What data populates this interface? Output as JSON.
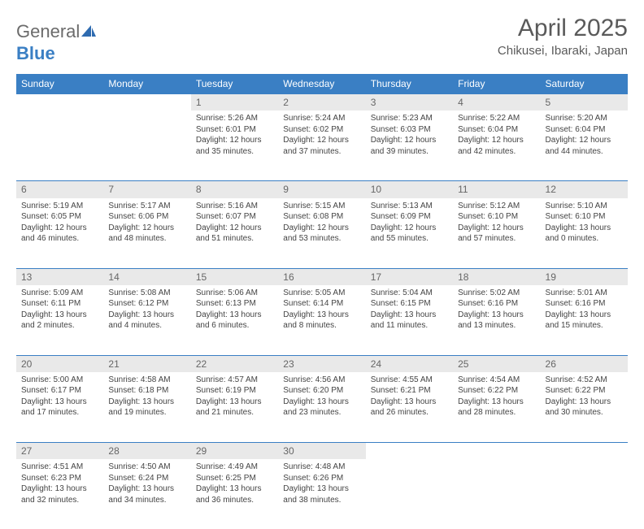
{
  "logo": {
    "text1": "General",
    "text2": "Blue"
  },
  "title": {
    "month": "April 2025",
    "location": "Chikusei, Ibaraki, Japan"
  },
  "colors": {
    "header_bg": "#3a7fc4",
    "header_fg": "#ffffff",
    "daynum_bg": "#e9e9e9",
    "border": "#3a7fc4",
    "text": "#444444",
    "title_color": "#5a5a5a"
  },
  "weekdays": [
    "Sunday",
    "Monday",
    "Tuesday",
    "Wednesday",
    "Thursday",
    "Friday",
    "Saturday"
  ],
  "weeks": [
    [
      null,
      null,
      {
        "n": "1",
        "sunrise": "5:26 AM",
        "sunset": "6:01 PM",
        "daylight": "12 hours and 35 minutes."
      },
      {
        "n": "2",
        "sunrise": "5:24 AM",
        "sunset": "6:02 PM",
        "daylight": "12 hours and 37 minutes."
      },
      {
        "n": "3",
        "sunrise": "5:23 AM",
        "sunset": "6:03 PM",
        "daylight": "12 hours and 39 minutes."
      },
      {
        "n": "4",
        "sunrise": "5:22 AM",
        "sunset": "6:04 PM",
        "daylight": "12 hours and 42 minutes."
      },
      {
        "n": "5",
        "sunrise": "5:20 AM",
        "sunset": "6:04 PM",
        "daylight": "12 hours and 44 minutes."
      }
    ],
    [
      {
        "n": "6",
        "sunrise": "5:19 AM",
        "sunset": "6:05 PM",
        "daylight": "12 hours and 46 minutes."
      },
      {
        "n": "7",
        "sunrise": "5:17 AM",
        "sunset": "6:06 PM",
        "daylight": "12 hours and 48 minutes."
      },
      {
        "n": "8",
        "sunrise": "5:16 AM",
        "sunset": "6:07 PM",
        "daylight": "12 hours and 51 minutes."
      },
      {
        "n": "9",
        "sunrise": "5:15 AM",
        "sunset": "6:08 PM",
        "daylight": "12 hours and 53 minutes."
      },
      {
        "n": "10",
        "sunrise": "5:13 AM",
        "sunset": "6:09 PM",
        "daylight": "12 hours and 55 minutes."
      },
      {
        "n": "11",
        "sunrise": "5:12 AM",
        "sunset": "6:10 PM",
        "daylight": "12 hours and 57 minutes."
      },
      {
        "n": "12",
        "sunrise": "5:10 AM",
        "sunset": "6:10 PM",
        "daylight": "13 hours and 0 minutes."
      }
    ],
    [
      {
        "n": "13",
        "sunrise": "5:09 AM",
        "sunset": "6:11 PM",
        "daylight": "13 hours and 2 minutes."
      },
      {
        "n": "14",
        "sunrise": "5:08 AM",
        "sunset": "6:12 PM",
        "daylight": "13 hours and 4 minutes."
      },
      {
        "n": "15",
        "sunrise": "5:06 AM",
        "sunset": "6:13 PM",
        "daylight": "13 hours and 6 minutes."
      },
      {
        "n": "16",
        "sunrise": "5:05 AM",
        "sunset": "6:14 PM",
        "daylight": "13 hours and 8 minutes."
      },
      {
        "n": "17",
        "sunrise": "5:04 AM",
        "sunset": "6:15 PM",
        "daylight": "13 hours and 11 minutes."
      },
      {
        "n": "18",
        "sunrise": "5:02 AM",
        "sunset": "6:16 PM",
        "daylight": "13 hours and 13 minutes."
      },
      {
        "n": "19",
        "sunrise": "5:01 AM",
        "sunset": "6:16 PM",
        "daylight": "13 hours and 15 minutes."
      }
    ],
    [
      {
        "n": "20",
        "sunrise": "5:00 AM",
        "sunset": "6:17 PM",
        "daylight": "13 hours and 17 minutes."
      },
      {
        "n": "21",
        "sunrise": "4:58 AM",
        "sunset": "6:18 PM",
        "daylight": "13 hours and 19 minutes."
      },
      {
        "n": "22",
        "sunrise": "4:57 AM",
        "sunset": "6:19 PM",
        "daylight": "13 hours and 21 minutes."
      },
      {
        "n": "23",
        "sunrise": "4:56 AM",
        "sunset": "6:20 PM",
        "daylight": "13 hours and 23 minutes."
      },
      {
        "n": "24",
        "sunrise": "4:55 AM",
        "sunset": "6:21 PM",
        "daylight": "13 hours and 26 minutes."
      },
      {
        "n": "25",
        "sunrise": "4:54 AM",
        "sunset": "6:22 PM",
        "daylight": "13 hours and 28 minutes."
      },
      {
        "n": "26",
        "sunrise": "4:52 AM",
        "sunset": "6:22 PM",
        "daylight": "13 hours and 30 minutes."
      }
    ],
    [
      {
        "n": "27",
        "sunrise": "4:51 AM",
        "sunset": "6:23 PM",
        "daylight": "13 hours and 32 minutes."
      },
      {
        "n": "28",
        "sunrise": "4:50 AM",
        "sunset": "6:24 PM",
        "daylight": "13 hours and 34 minutes."
      },
      {
        "n": "29",
        "sunrise": "4:49 AM",
        "sunset": "6:25 PM",
        "daylight": "13 hours and 36 minutes."
      },
      {
        "n": "30",
        "sunrise": "4:48 AM",
        "sunset": "6:26 PM",
        "daylight": "13 hours and 38 minutes."
      },
      null,
      null,
      null
    ]
  ],
  "labels": {
    "sunrise": "Sunrise:",
    "sunset": "Sunset:",
    "daylight": "Daylight:"
  }
}
